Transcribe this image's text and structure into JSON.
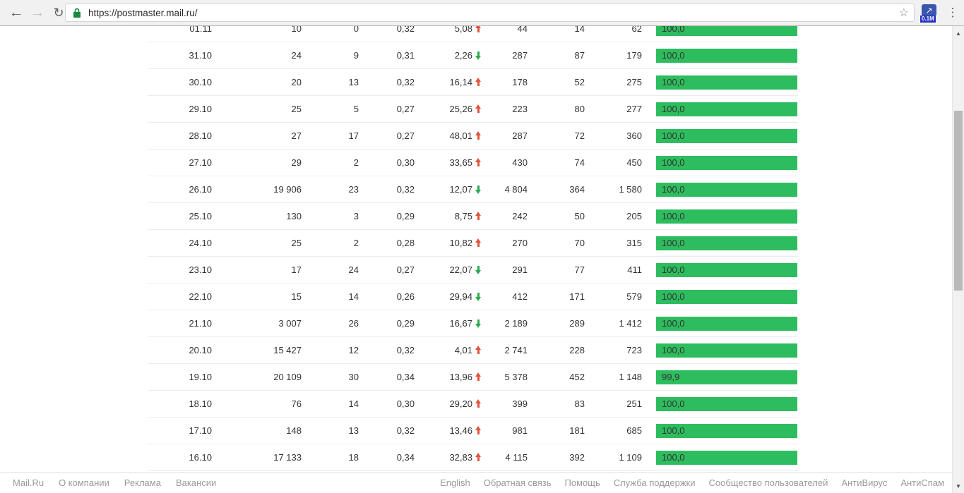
{
  "browser": {
    "url": "https://postmaster.mail.ru/",
    "back_glyph": "←",
    "forward_glyph": "→",
    "reload_glyph": "↻",
    "bookmark_glyph": "☆",
    "extension_arrow_glyph": "↗",
    "extension_badge": "0.1M",
    "menu_glyph": "⋮",
    "scroll_up_glyph": "▲",
    "scroll_down_glyph": "▼"
  },
  "colors": {
    "bar_green": "#2ebd5e",
    "trend_up_red": "#e1543c",
    "trend_down_green": "#2ca94d",
    "lock_green": "#1a8a42"
  },
  "table": {
    "rows": [
      {
        "date": "01.11",
        "v1": "10",
        "v2": "0",
        "v3": "0,32",
        "trend": {
          "value": "5,08",
          "dir": "up"
        },
        "v4": "44",
        "v5": "14",
        "v6": "62",
        "score": {
          "label": "100,0",
          "pct": 100
        }
      },
      {
        "date": "31.10",
        "v1": "24",
        "v2": "9",
        "v3": "0,31",
        "trend": {
          "value": "2,26",
          "dir": "down"
        },
        "v4": "287",
        "v5": "87",
        "v6": "179",
        "score": {
          "label": "100,0",
          "pct": 100
        }
      },
      {
        "date": "30.10",
        "v1": "20",
        "v2": "13",
        "v3": "0,32",
        "trend": {
          "value": "16,14",
          "dir": "up"
        },
        "v4": "178",
        "v5": "52",
        "v6": "275",
        "score": {
          "label": "100,0",
          "pct": 100
        }
      },
      {
        "date": "29.10",
        "v1": "25",
        "v2": "5",
        "v3": "0,27",
        "trend": {
          "value": "25,26",
          "dir": "up"
        },
        "v4": "223",
        "v5": "80",
        "v6": "277",
        "score": {
          "label": "100,0",
          "pct": 100
        }
      },
      {
        "date": "28.10",
        "v1": "27",
        "v2": "17",
        "v3": "0,27",
        "trend": {
          "value": "48,01",
          "dir": "up"
        },
        "v4": "287",
        "v5": "72",
        "v6": "360",
        "score": {
          "label": "100,0",
          "pct": 100
        }
      },
      {
        "date": "27.10",
        "v1": "29",
        "v2": "2",
        "v3": "0,30",
        "trend": {
          "value": "33,65",
          "dir": "up"
        },
        "v4": "430",
        "v5": "74",
        "v6": "450",
        "score": {
          "label": "100,0",
          "pct": 100
        }
      },
      {
        "date": "26.10",
        "v1": "19 906",
        "v2": "23",
        "v3": "0,32",
        "trend": {
          "value": "12,07",
          "dir": "down"
        },
        "v4": "4 804",
        "v5": "364",
        "v6": "1 580",
        "score": {
          "label": "100,0",
          "pct": 100
        }
      },
      {
        "date": "25.10",
        "v1": "130",
        "v2": "3",
        "v3": "0,29",
        "trend": {
          "value": "8,75",
          "dir": "up"
        },
        "v4": "242",
        "v5": "50",
        "v6": "205",
        "score": {
          "label": "100,0",
          "pct": 100
        }
      },
      {
        "date": "24.10",
        "v1": "25",
        "v2": "2",
        "v3": "0,28",
        "trend": {
          "value": "10,82",
          "dir": "up"
        },
        "v4": "270",
        "v5": "70",
        "v6": "315",
        "score": {
          "label": "100,0",
          "pct": 100
        }
      },
      {
        "date": "23.10",
        "v1": "17",
        "v2": "24",
        "v3": "0,27",
        "trend": {
          "value": "22,07",
          "dir": "down"
        },
        "v4": "291",
        "v5": "77",
        "v6": "411",
        "score": {
          "label": "100,0",
          "pct": 100
        }
      },
      {
        "date": "22.10",
        "v1": "15",
        "v2": "14",
        "v3": "0,26",
        "trend": {
          "value": "29,94",
          "dir": "down"
        },
        "v4": "412",
        "v5": "171",
        "v6": "579",
        "score": {
          "label": "100,0",
          "pct": 100
        }
      },
      {
        "date": "21.10",
        "v1": "3 007",
        "v2": "26",
        "v3": "0,29",
        "trend": {
          "value": "16,67",
          "dir": "down"
        },
        "v4": "2 189",
        "v5": "289",
        "v6": "1 412",
        "score": {
          "label": "100,0",
          "pct": 100
        }
      },
      {
        "date": "20.10",
        "v1": "15 427",
        "v2": "12",
        "v3": "0,32",
        "trend": {
          "value": "4,01",
          "dir": "up"
        },
        "v4": "2 741",
        "v5": "228",
        "v6": "723",
        "score": {
          "label": "100,0",
          "pct": 100
        }
      },
      {
        "date": "19.10",
        "v1": "20 109",
        "v2": "30",
        "v3": "0,34",
        "trend": {
          "value": "13,96",
          "dir": "up"
        },
        "v4": "5 378",
        "v5": "452",
        "v6": "1 148",
        "score": {
          "label": "99,9",
          "pct": 99.9
        }
      },
      {
        "date": "18.10",
        "v1": "76",
        "v2": "14",
        "v3": "0,30",
        "trend": {
          "value": "29,20",
          "dir": "up"
        },
        "v4": "399",
        "v5": "83",
        "v6": "251",
        "score": {
          "label": "100,0",
          "pct": 100
        }
      },
      {
        "date": "17.10",
        "v1": "148",
        "v2": "13",
        "v3": "0,32",
        "trend": {
          "value": "13,46",
          "dir": "up"
        },
        "v4": "981",
        "v5": "181",
        "v6": "685",
        "score": {
          "label": "100,0",
          "pct": 100
        }
      },
      {
        "date": "16.10",
        "v1": "17 133",
        "v2": "18",
        "v3": "0,34",
        "trend": {
          "value": "32,83",
          "dir": "up"
        },
        "v4": "4 115",
        "v5": "392",
        "v6": "1 109",
        "score": {
          "label": "100,0",
          "pct": 100
        }
      }
    ]
  },
  "footer": {
    "left_links": [
      "Mail.Ru",
      "О компании",
      "Реклама",
      "Вакансии"
    ],
    "right_links": [
      "English",
      "Обратная связь",
      "Помощь",
      "Служба поддержки",
      "Сообщество пользователей",
      "АнтиВирус",
      "АнтиСпам"
    ]
  }
}
